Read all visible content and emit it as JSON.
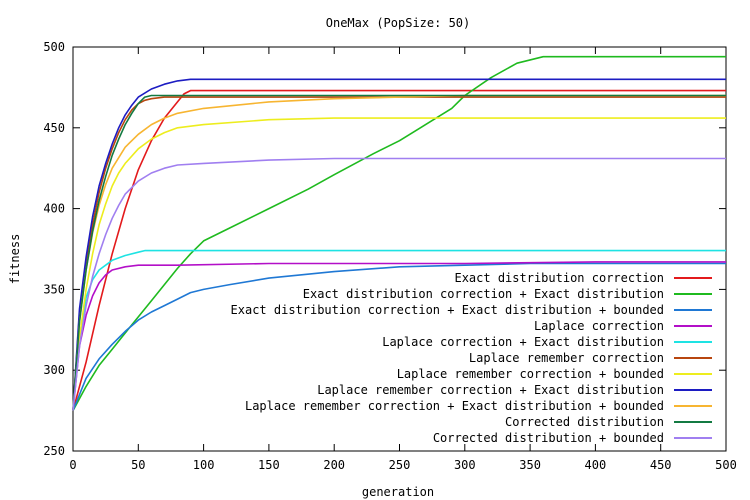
{
  "chart_data": {
    "type": "line",
    "title": "OneMax (PopSize: 50)",
    "xlabel": "generation",
    "ylabel": "fitness",
    "xlim": [
      0,
      500
    ],
    "ylim": [
      250,
      500
    ],
    "xticks": [
      0,
      50,
      100,
      150,
      200,
      250,
      300,
      350,
      400,
      450,
      500
    ],
    "yticks": [
      250,
      300,
      350,
      400,
      450,
      500
    ],
    "grid": false,
    "legend_position": "bottom-right",
    "series": [
      {
        "name": "Exact distribution correction",
        "color": "#e31a1c",
        "points": [
          [
            0,
            275
          ],
          [
            10,
            305
          ],
          [
            20,
            340
          ],
          [
            30,
            372
          ],
          [
            40,
            400
          ],
          [
            50,
            424
          ],
          [
            60,
            442
          ],
          [
            70,
            456
          ],
          [
            80,
            466
          ],
          [
            85,
            471
          ],
          [
            90,
            473
          ],
          [
            100,
            473
          ],
          [
            200,
            473
          ],
          [
            300,
            473
          ],
          [
            400,
            473
          ],
          [
            500,
            473
          ]
        ]
      },
      {
        "name": "Exact distribution correction + Exact distribution",
        "color": "#1fba1f",
        "points": [
          [
            0,
            275
          ],
          [
            10,
            290
          ],
          [
            20,
            303
          ],
          [
            30,
            313
          ],
          [
            40,
            323
          ],
          [
            50,
            333
          ],
          [
            60,
            343
          ],
          [
            70,
            353
          ],
          [
            80,
            363
          ],
          [
            90,
            372
          ],
          [
            100,
            380
          ],
          [
            120,
            388
          ],
          [
            150,
            400
          ],
          [
            180,
            412
          ],
          [
            200,
            421
          ],
          [
            230,
            434
          ],
          [
            250,
            442
          ],
          [
            270,
            452
          ],
          [
            290,
            462
          ],
          [
            300,
            470
          ],
          [
            320,
            481
          ],
          [
            340,
            490
          ],
          [
            360,
            494
          ],
          [
            400,
            494
          ],
          [
            450,
            494
          ],
          [
            500,
            494
          ]
        ]
      },
      {
        "name": "Exact distribution correction + Exact distribution + bounded",
        "color": "#1f78d4",
        "points": [
          [
            0,
            275
          ],
          [
            10,
            295
          ],
          [
            20,
            307
          ],
          [
            30,
            316
          ],
          [
            40,
            324
          ],
          [
            50,
            331
          ],
          [
            60,
            336
          ],
          [
            70,
            340
          ],
          [
            80,
            344
          ],
          [
            90,
            348
          ],
          [
            100,
            350
          ],
          [
            120,
            353
          ],
          [
            150,
            357
          ],
          [
            200,
            361
          ],
          [
            250,
            364
          ],
          [
            300,
            365
          ],
          [
            350,
            366
          ],
          [
            400,
            366
          ],
          [
            450,
            366
          ],
          [
            500,
            366
          ]
        ]
      },
      {
        "name": "Laplace correction",
        "color": "#b30fc8",
        "points": [
          [
            0,
            275
          ],
          [
            5,
            315
          ],
          [
            10,
            334
          ],
          [
            15,
            346
          ],
          [
            20,
            354
          ],
          [
            25,
            359
          ],
          [
            30,
            362
          ],
          [
            40,
            364
          ],
          [
            50,
            365
          ],
          [
            80,
            365
          ],
          [
            150,
            366
          ],
          [
            300,
            366
          ],
          [
            400,
            367
          ],
          [
            500,
            367
          ]
        ]
      },
      {
        "name": "Laplace correction + Exact distribution",
        "color": "#1ee3e3",
        "points": [
          [
            0,
            275
          ],
          [
            5,
            320
          ],
          [
            10,
            345
          ],
          [
            15,
            356
          ],
          [
            20,
            362
          ],
          [
            30,
            368
          ],
          [
            40,
            371
          ],
          [
            50,
            373
          ],
          [
            55,
            374
          ],
          [
            100,
            374
          ],
          [
            200,
            374
          ],
          [
            300,
            374
          ],
          [
            400,
            374
          ],
          [
            500,
            374
          ]
        ]
      },
      {
        "name": "Laplace remember correction",
        "color": "#b8460f",
        "points": [
          [
            0,
            275
          ],
          [
            5,
            335
          ],
          [
            10,
            365
          ],
          [
            15,
            390
          ],
          [
            20,
            410
          ],
          [
            25,
            425
          ],
          [
            30,
            437
          ],
          [
            35,
            447
          ],
          [
            40,
            455
          ],
          [
            45,
            461
          ],
          [
            50,
            465
          ],
          [
            55,
            467
          ],
          [
            60,
            468
          ],
          [
            70,
            469
          ],
          [
            100,
            469
          ],
          [
            200,
            469
          ],
          [
            300,
            469
          ],
          [
            400,
            469
          ],
          [
            500,
            469
          ]
        ]
      },
      {
        "name": "Laplace remember correction + bounded",
        "color": "#eded1e",
        "points": [
          [
            0,
            275
          ],
          [
            5,
            320
          ],
          [
            10,
            350
          ],
          [
            15,
            372
          ],
          [
            20,
            390
          ],
          [
            25,
            403
          ],
          [
            30,
            414
          ],
          [
            35,
            422
          ],
          [
            40,
            428
          ],
          [
            50,
            437
          ],
          [
            60,
            443
          ],
          [
            70,
            447
          ],
          [
            80,
            450
          ],
          [
            100,
            452
          ],
          [
            150,
            455
          ],
          [
            200,
            456
          ],
          [
            300,
            456
          ],
          [
            400,
            456
          ],
          [
            500,
            456
          ]
        ]
      },
      {
        "name": "Laplace remember correction + Exact distribution",
        "color": "#1c1cc2",
        "points": [
          [
            0,
            275
          ],
          [
            5,
            338
          ],
          [
            10,
            370
          ],
          [
            15,
            395
          ],
          [
            20,
            414
          ],
          [
            25,
            428
          ],
          [
            30,
            440
          ],
          [
            35,
            450
          ],
          [
            40,
            458
          ],
          [
            45,
            464
          ],
          [
            50,
            469
          ],
          [
            60,
            474
          ],
          [
            70,
            477
          ],
          [
            80,
            479
          ],
          [
            90,
            480
          ],
          [
            100,
            480
          ],
          [
            200,
            480
          ],
          [
            300,
            480
          ],
          [
            400,
            480
          ],
          [
            500,
            480
          ]
        ]
      },
      {
        "name": "Laplace remember correction + Exact distribution + bounded",
        "color": "#f7b531",
        "points": [
          [
            0,
            275
          ],
          [
            5,
            330
          ],
          [
            10,
            362
          ],
          [
            15,
            385
          ],
          [
            20,
            402
          ],
          [
            25,
            415
          ],
          [
            30,
            425
          ],
          [
            40,
            438
          ],
          [
            50,
            446
          ],
          [
            60,
            452
          ],
          [
            70,
            456
          ],
          [
            80,
            459
          ],
          [
            100,
            462
          ],
          [
            150,
            466
          ],
          [
            200,
            468
          ],
          [
            250,
            469
          ],
          [
            300,
            470
          ],
          [
            400,
            470
          ],
          [
            500,
            470
          ]
        ]
      },
      {
        "name": "Corrected distribution",
        "color": "#137a42",
        "points": [
          [
            0,
            275
          ],
          [
            5,
            330
          ],
          [
            10,
            362
          ],
          [
            15,
            386
          ],
          [
            20,
            405
          ],
          [
            25,
            420
          ],
          [
            30,
            433
          ],
          [
            35,
            443
          ],
          [
            40,
            452
          ],
          [
            45,
            459
          ],
          [
            50,
            465
          ],
          [
            55,
            469
          ],
          [
            60,
            470
          ],
          [
            100,
            470
          ],
          [
            200,
            470
          ],
          [
            300,
            470
          ],
          [
            400,
            470
          ],
          [
            500,
            470
          ]
        ]
      },
      {
        "name": "Corrected distribution + bounded",
        "color": "#a07ff0",
        "points": [
          [
            0,
            275
          ],
          [
            5,
            315
          ],
          [
            10,
            340
          ],
          [
            15,
            358
          ],
          [
            20,
            372
          ],
          [
            25,
            384
          ],
          [
            30,
            394
          ],
          [
            35,
            402
          ],
          [
            40,
            409
          ],
          [
            50,
            417
          ],
          [
            60,
            422
          ],
          [
            70,
            425
          ],
          [
            80,
            427
          ],
          [
            100,
            428
          ],
          [
            150,
            430
          ],
          [
            200,
            431
          ],
          [
            300,
            431
          ],
          [
            400,
            431
          ],
          [
            500,
            431
          ]
        ]
      }
    ]
  }
}
